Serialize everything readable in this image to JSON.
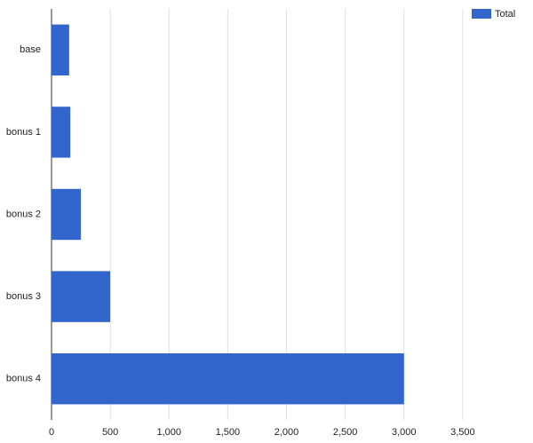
{
  "chart_data": {
    "type": "hbar",
    "categories": [
      "base",
      "bonus 1",
      "bonus 2",
      "bonus 3",
      "bonus 4"
    ],
    "series": [
      {
        "name": "Total",
        "color": "#3366cc",
        "values": [
          150,
          160,
          250,
          500,
          3000
        ]
      }
    ],
    "xlim": [
      0,
      4000
    ],
    "xticks": [
      0,
      500,
      {
        "value": 1000,
        "label": "1,000"
      },
      {
        "value": 1500,
        "label": "1,500"
      },
      {
        "value": 2000,
        "label": "2,000"
      },
      {
        "value": 2500,
        "label": "2,500"
      },
      {
        "value": 3000,
        "label": "3,000"
      },
      {
        "value": 3500,
        "label": "3,500"
      }
    ],
    "grid": true,
    "legend": "top-right"
  }
}
